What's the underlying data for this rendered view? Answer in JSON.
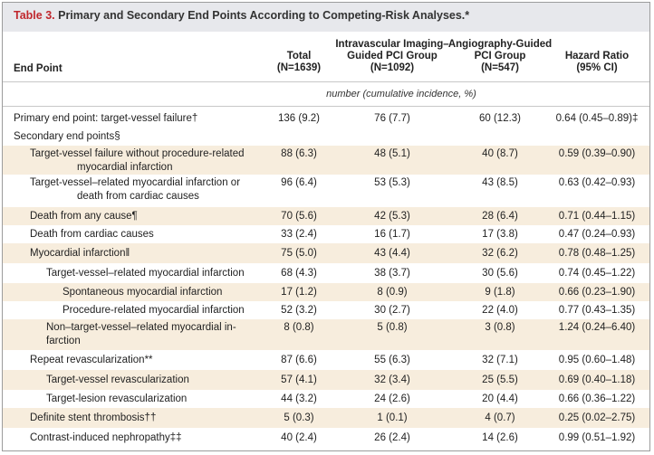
{
  "table": {
    "title_label": "Table 3.",
    "title_text": "Primary and Secondary End Points According to Competing-Risk Analyses.*",
    "headers": {
      "endpoint": "End Point",
      "total_l1": "Total",
      "total_l2": "(N=1639)",
      "ivi_l1": "Intravascular Imaging–",
      "ivi_l2": "Guided PCI Group",
      "ivi_l3": "(N=1092)",
      "angio_l1": "Angiography-Guided",
      "angio_l2": "PCI Group",
      "angio_l3": "(N=547)",
      "hr_l1": "Hazard Ratio",
      "hr_l2": "(95% CI)"
    },
    "unit_note": "number (cumulative incidence, %)",
    "rows": [
      {
        "label": "Primary end point: target-vessel failure†",
        "total": "136 (9.2)",
        "ivi": "76 (7.7)",
        "angio": "60 (12.3)",
        "hr": "0.64 (0.45–0.89)‡"
      },
      {
        "label": "Secondary end points§",
        "total": "",
        "ivi": "",
        "angio": "",
        "hr": ""
      },
      {
        "label": "Target-vessel failure without procedure-related",
        "label2": "myocardial infarction",
        "total": "88 (6.3)",
        "ivi": "48 (5.1)",
        "angio": "40 (8.7)",
        "hr": "0.59 (0.39–0.90)"
      },
      {
        "label": "Target-vessel–related myocardial infarction or",
        "label2": "death from cardiac causes",
        "total": "96 (6.4)",
        "ivi": "53 (5.3)",
        "angio": "43 (8.5)",
        "hr": "0.63 (0.42–0.93)"
      },
      {
        "label": "Death from any cause¶",
        "total": "70 (5.6)",
        "ivi": "42 (5.3)",
        "angio": "28 (6.4)",
        "hr": "0.71 (0.44–1.15)"
      },
      {
        "label": "Death from cardiac causes",
        "total": "33 (2.4)",
        "ivi": "16 (1.7)",
        "angio": "17 (3.8)",
        "hr": "0.47 (0.24–0.93)"
      },
      {
        "label": "Myocardial infarction‖",
        "total": "75 (5.0)",
        "ivi": "43 (4.4)",
        "angio": "32 (6.2)",
        "hr": "0.78 (0.48–1.25)"
      },
      {
        "label": "Target-vessel–related myocardial infarction",
        "total": "68 (4.3)",
        "ivi": "38 (3.7)",
        "angio": "30 (5.6)",
        "hr": "0.74 (0.45–1.22)"
      },
      {
        "label": "Spontaneous myocardial infarction",
        "total": "17 (1.2)",
        "ivi": "8 (0.9)",
        "angio": "9 (1.8)",
        "hr": "0.66 (0.23–1.90)"
      },
      {
        "label": "Procedure-related myocardial infarction",
        "total": "52 (3.2)",
        "ivi": "30 (2.7)",
        "angio": "22 (4.0)",
        "hr": "0.77 (0.43–1.35)"
      },
      {
        "label": "Non–target-vessel–related myocardial in-",
        "label2": "farction",
        "total": "8 (0.8)",
        "ivi": "5 (0.8)",
        "angio": "3 (0.8)",
        "hr": "1.24 (0.24–6.40)"
      },
      {
        "label": "Repeat revascularization**",
        "total": "87 (6.6)",
        "ivi": "55 (6.3)",
        "angio": "32 (7.1)",
        "hr": "0.95 (0.60–1.48)"
      },
      {
        "label": "Target-vessel revascularization",
        "total": "57 (4.1)",
        "ivi": "32 (3.4)",
        "angio": "25 (5.5)",
        "hr": "0.69 (0.40–1.18)"
      },
      {
        "label": "Target-lesion revascularization",
        "total": "44 (3.2)",
        "ivi": "24 (2.6)",
        "angio": "20 (4.4)",
        "hr": "0.66 (0.36–1.22)"
      },
      {
        "label": "Definite stent thrombosis††",
        "total": "5 (0.3)",
        "ivi": "1 (0.1)",
        "angio": "4 (0.7)",
        "hr": "0.25 (0.02–2.75)"
      },
      {
        "label": "Contrast-induced nephropathy‡‡",
        "total": "40 (2.4)",
        "ivi": "26 (2.4)",
        "angio": "14 (2.6)",
        "hr": "0.99 (0.51–1.92)"
      }
    ]
  }
}
